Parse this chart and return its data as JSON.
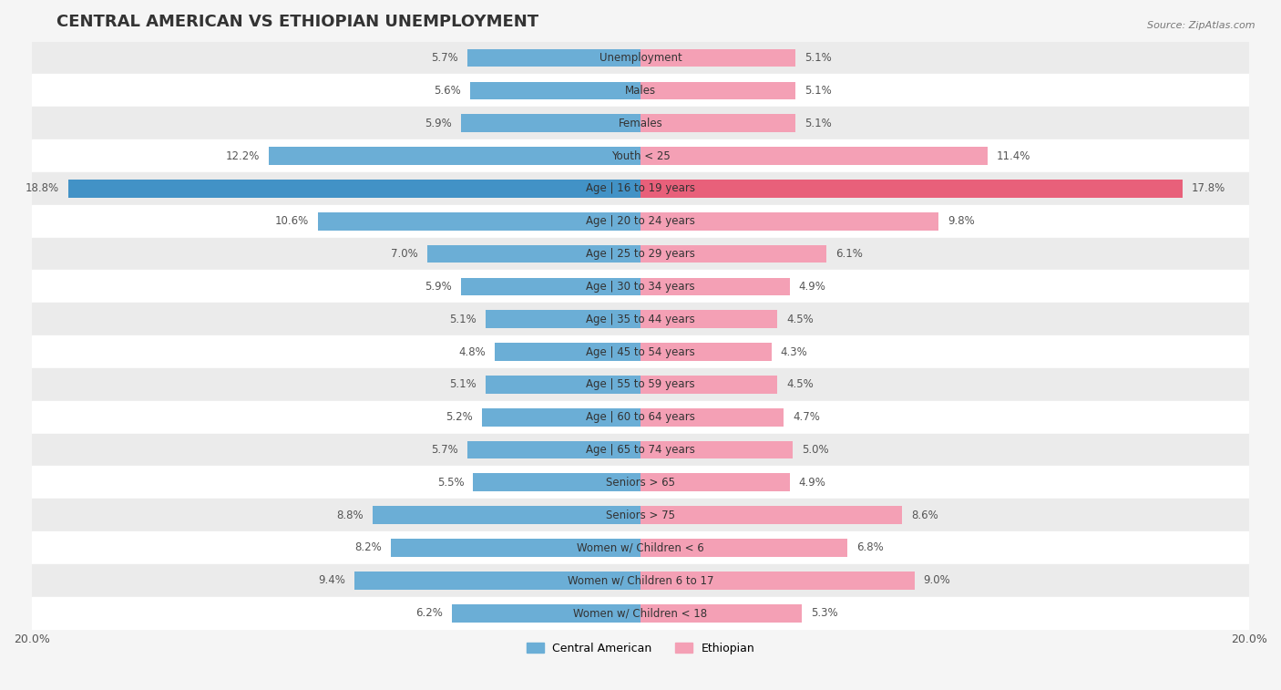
{
  "title": "CENTRAL AMERICAN VS ETHIOPIAN UNEMPLOYMENT",
  "source": "Source: ZipAtlas.com",
  "categories": [
    "Unemployment",
    "Males",
    "Females",
    "Youth < 25",
    "Age | 16 to 19 years",
    "Age | 20 to 24 years",
    "Age | 25 to 29 years",
    "Age | 30 to 34 years",
    "Age | 35 to 44 years",
    "Age | 45 to 54 years",
    "Age | 55 to 59 years",
    "Age | 60 to 64 years",
    "Age | 65 to 74 years",
    "Seniors > 65",
    "Seniors > 75",
    "Women w/ Children < 6",
    "Women w/ Children 6 to 17",
    "Women w/ Children < 18"
  ],
  "central_american": [
    5.7,
    5.6,
    5.9,
    12.2,
    18.8,
    10.6,
    7.0,
    5.9,
    5.1,
    4.8,
    5.1,
    5.2,
    5.7,
    5.5,
    8.8,
    8.2,
    9.4,
    6.2
  ],
  "ethiopian": [
    5.1,
    5.1,
    5.1,
    11.4,
    17.8,
    9.8,
    6.1,
    4.9,
    4.5,
    4.3,
    4.5,
    4.7,
    5.0,
    4.9,
    8.6,
    6.8,
    9.0,
    5.3
  ],
  "central_american_color": "#6baed6",
  "ethiopian_color": "#f4a0b5",
  "central_american_color_highlight": "#4292c6",
  "ethiopian_color_highlight": "#e8607a",
  "background_color": "#f5f5f5",
  "row_alt_color": "#ffffff",
  "row_base_color": "#ebebeb",
  "xlim": 20.0,
  "bar_height": 0.55,
  "label_fontsize": 8.5,
  "title_fontsize": 13,
  "legend_fontsize": 9
}
